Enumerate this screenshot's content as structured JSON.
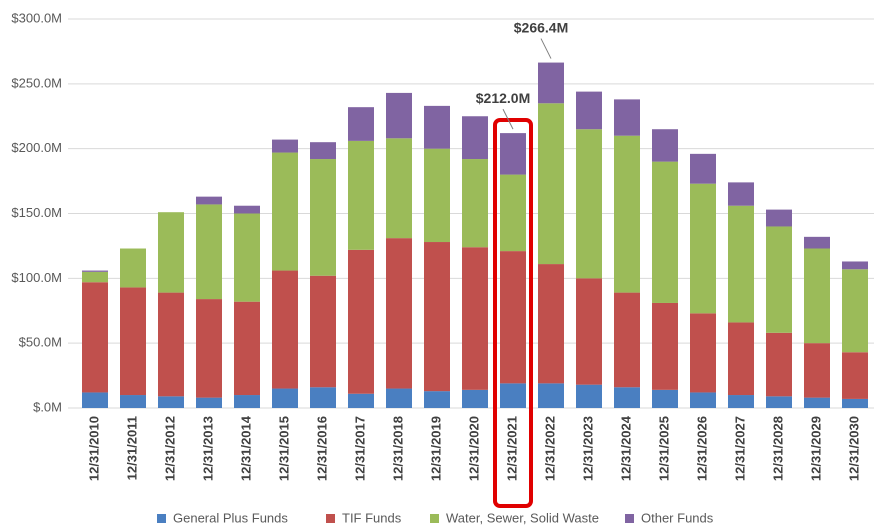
{
  "chart_data": {
    "type": "stacked_bar",
    "categories": [
      "12/31/2010",
      "12/31/2011",
      "12/31/2012",
      "12/31/2013",
      "12/31/2014",
      "12/31/2015",
      "12/31/2016",
      "12/31/2017",
      "12/31/2018",
      "12/31/2019",
      "12/31/2020",
      "12/31/2021",
      "12/31/2022",
      "12/31/2023",
      "12/31/2024",
      "12/31/2025",
      "12/31/2026",
      "12/31/2027",
      "12/31/2028",
      "12/31/2029",
      "12/31/2030"
    ],
    "series": [
      {
        "name": "General Plus Funds",
        "color": "#4a7fc1",
        "values": [
          12,
          10,
          9,
          8,
          10,
          15,
          16,
          11,
          15,
          13,
          14,
          19,
          19,
          18,
          16,
          14,
          12,
          10,
          9,
          8,
          7
        ]
      },
      {
        "name": "TIF Funds",
        "color": "#c0504d",
        "values": [
          85,
          83,
          80,
          76,
          72,
          91,
          86,
          111,
          116,
          115,
          110,
          102,
          92,
          82,
          73,
          67,
          61,
          56,
          49,
          42,
          36
        ]
      },
      {
        "name": "Water, Sewer, Solid Waste",
        "color": "#9bbb59",
        "values": [
          8,
          30,
          62,
          73,
          68,
          91,
          90,
          84,
          77,
          72,
          68,
          59,
          124,
          115,
          121,
          109,
          100,
          90,
          82,
          73,
          64
        ]
      },
      {
        "name": "Other Funds",
        "color": "#8064a2",
        "values": [
          1,
          0,
          0,
          6,
          6,
          10,
          13,
          26,
          35,
          33,
          33,
          32,
          31.4,
          29,
          28,
          25,
          23,
          18,
          13,
          9,
          6
        ]
      }
    ],
    "annotations": [
      {
        "category": 11,
        "value": 212.0,
        "label": "$212.0M"
      },
      {
        "category": 12,
        "value": 266.4,
        "label": "$266.4M"
      }
    ],
    "highlight": {
      "category": 11,
      "color": "#e00000"
    },
    "ylim": [
      0,
      300
    ],
    "yticks": [
      {
        "value": 0,
        "label": "$.0M"
      },
      {
        "value": 50,
        "label": "$50.0M"
      },
      {
        "value": 100,
        "label": "$100.0M"
      },
      {
        "value": 150,
        "label": "$150.0M"
      },
      {
        "value": 200,
        "label": "$200.0M"
      },
      {
        "value": 250,
        "label": "$250.0M"
      },
      {
        "value": 300,
        "label": "$300.0M"
      }
    ],
    "grid": true,
    "legend": "bottom"
  }
}
